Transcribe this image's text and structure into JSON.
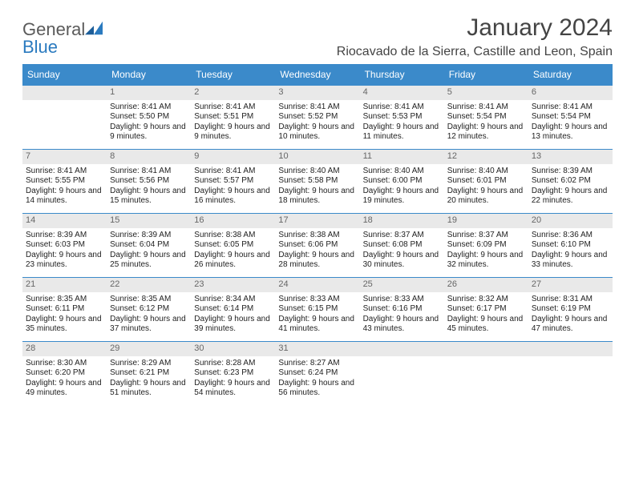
{
  "brand": {
    "word1": "General",
    "word2": "Blue"
  },
  "title": {
    "month": "January 2024",
    "location": "Riocavado de la Sierra, Castille and Leon, Spain"
  },
  "colors": {
    "header_bg": "#3b8aca",
    "header_text": "#ffffff",
    "daynum_bg": "#e9e9e9",
    "border": "#3b8aca",
    "body_bg": "#ffffff"
  },
  "weekdays": [
    "Sunday",
    "Monday",
    "Tuesday",
    "Wednesday",
    "Thursday",
    "Friday",
    "Saturday"
  ],
  "month_start_weekday": 1,
  "days_in_month": 31,
  "detail_labels": {
    "sunrise": "Sunrise:",
    "sunset": "Sunset:",
    "daylight": "Daylight:"
  },
  "days": {
    "1": {
      "sunrise": "8:41 AM",
      "sunset": "5:50 PM",
      "daylight": "9 hours and 9 minutes."
    },
    "2": {
      "sunrise": "8:41 AM",
      "sunset": "5:51 PM",
      "daylight": "9 hours and 9 minutes."
    },
    "3": {
      "sunrise": "8:41 AM",
      "sunset": "5:52 PM",
      "daylight": "9 hours and 10 minutes."
    },
    "4": {
      "sunrise": "8:41 AM",
      "sunset": "5:53 PM",
      "daylight": "9 hours and 11 minutes."
    },
    "5": {
      "sunrise": "8:41 AM",
      "sunset": "5:54 PM",
      "daylight": "9 hours and 12 minutes."
    },
    "6": {
      "sunrise": "8:41 AM",
      "sunset": "5:54 PM",
      "daylight": "9 hours and 13 minutes."
    },
    "7": {
      "sunrise": "8:41 AM",
      "sunset": "5:55 PM",
      "daylight": "9 hours and 14 minutes."
    },
    "8": {
      "sunrise": "8:41 AM",
      "sunset": "5:56 PM",
      "daylight": "9 hours and 15 minutes."
    },
    "9": {
      "sunrise": "8:41 AM",
      "sunset": "5:57 PM",
      "daylight": "9 hours and 16 minutes."
    },
    "10": {
      "sunrise": "8:40 AM",
      "sunset": "5:58 PM",
      "daylight": "9 hours and 18 minutes."
    },
    "11": {
      "sunrise": "8:40 AM",
      "sunset": "6:00 PM",
      "daylight": "9 hours and 19 minutes."
    },
    "12": {
      "sunrise": "8:40 AM",
      "sunset": "6:01 PM",
      "daylight": "9 hours and 20 minutes."
    },
    "13": {
      "sunrise": "8:39 AM",
      "sunset": "6:02 PM",
      "daylight": "9 hours and 22 minutes."
    },
    "14": {
      "sunrise": "8:39 AM",
      "sunset": "6:03 PM",
      "daylight": "9 hours and 23 minutes."
    },
    "15": {
      "sunrise": "8:39 AM",
      "sunset": "6:04 PM",
      "daylight": "9 hours and 25 minutes."
    },
    "16": {
      "sunrise": "8:38 AM",
      "sunset": "6:05 PM",
      "daylight": "9 hours and 26 minutes."
    },
    "17": {
      "sunrise": "8:38 AM",
      "sunset": "6:06 PM",
      "daylight": "9 hours and 28 minutes."
    },
    "18": {
      "sunrise": "8:37 AM",
      "sunset": "6:08 PM",
      "daylight": "9 hours and 30 minutes."
    },
    "19": {
      "sunrise": "8:37 AM",
      "sunset": "6:09 PM",
      "daylight": "9 hours and 32 minutes."
    },
    "20": {
      "sunrise": "8:36 AM",
      "sunset": "6:10 PM",
      "daylight": "9 hours and 33 minutes."
    },
    "21": {
      "sunrise": "8:35 AM",
      "sunset": "6:11 PM",
      "daylight": "9 hours and 35 minutes."
    },
    "22": {
      "sunrise": "8:35 AM",
      "sunset": "6:12 PM",
      "daylight": "9 hours and 37 minutes."
    },
    "23": {
      "sunrise": "8:34 AM",
      "sunset": "6:14 PM",
      "daylight": "9 hours and 39 minutes."
    },
    "24": {
      "sunrise": "8:33 AM",
      "sunset": "6:15 PM",
      "daylight": "9 hours and 41 minutes."
    },
    "25": {
      "sunrise": "8:33 AM",
      "sunset": "6:16 PM",
      "daylight": "9 hours and 43 minutes."
    },
    "26": {
      "sunrise": "8:32 AM",
      "sunset": "6:17 PM",
      "daylight": "9 hours and 45 minutes."
    },
    "27": {
      "sunrise": "8:31 AM",
      "sunset": "6:19 PM",
      "daylight": "9 hours and 47 minutes."
    },
    "28": {
      "sunrise": "8:30 AM",
      "sunset": "6:20 PM",
      "daylight": "9 hours and 49 minutes."
    },
    "29": {
      "sunrise": "8:29 AM",
      "sunset": "6:21 PM",
      "daylight": "9 hours and 51 minutes."
    },
    "30": {
      "sunrise": "8:28 AM",
      "sunset": "6:23 PM",
      "daylight": "9 hours and 54 minutes."
    },
    "31": {
      "sunrise": "8:27 AM",
      "sunset": "6:24 PM",
      "daylight": "9 hours and 56 minutes."
    }
  }
}
